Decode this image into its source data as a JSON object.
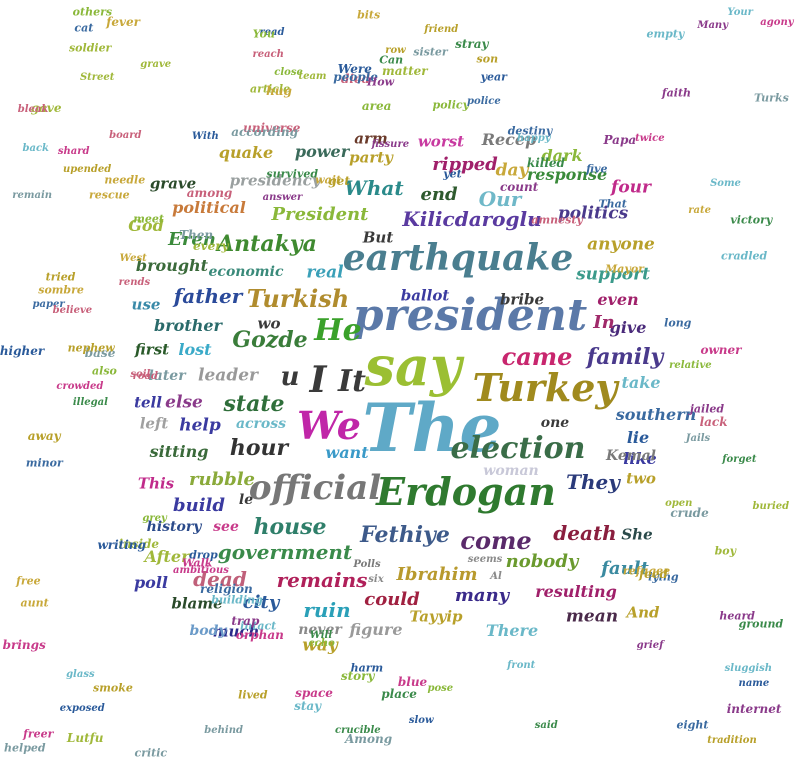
{
  "words": [
    {
      "t": "The",
      "c": "#5fa9c7"
    },
    {
      "t": "say",
      "c": "#9bbf33"
    },
    {
      "t": "president",
      "c": "#5b79a8"
    },
    {
      "t": "earthquake",
      "c": "#4a7e8f"
    },
    {
      "t": "Erdogan",
      "c": "#2f7a2f"
    },
    {
      "t": "official",
      "c": "#777777"
    },
    {
      "t": "Turkey",
      "c": "#a08a1e"
    },
    {
      "t": "election",
      "c": "#3a6d48"
    },
    {
      "t": "We",
      "c": "#c026a8"
    },
    {
      "t": "I",
      "c": "#3a3a3a"
    },
    {
      "t": "It",
      "c": "#3a3a3a"
    },
    {
      "t": "He",
      "c": "#3aa12a"
    },
    {
      "t": "came",
      "c": "#c8266e"
    },
    {
      "t": "family",
      "c": "#4a3a8c"
    },
    {
      "t": "hour",
      "c": "#333333"
    },
    {
      "t": "state",
      "c": "#2f6e3a"
    },
    {
      "t": "Antakya",
      "c": "#3f8a30"
    },
    {
      "t": "Turkish",
      "c": "#b08c2e"
    },
    {
      "t": "Gozde",
      "c": "#3a7d3a"
    },
    {
      "t": "Fethiye",
      "c": "#3d5a8a"
    },
    {
      "t": "come",
      "c": "#5a2a6a"
    },
    {
      "t": "house",
      "c": "#2f7f6a"
    },
    {
      "t": "government",
      "c": "#3a8a4a"
    },
    {
      "t": "death",
      "c": "#8a1e3e"
    },
    {
      "t": "remains",
      "c": "#b0205a"
    },
    {
      "t": "Ibrahim",
      "c": "#b89a2e"
    },
    {
      "t": "nobody",
      "c": "#6a9a2e"
    },
    {
      "t": "They",
      "c": "#2a3a7a"
    },
    {
      "t": "Kilicdaroglu",
      "c": "#5a3aa0"
    },
    {
      "t": "President",
      "c": "#8ab83a"
    },
    {
      "t": "What",
      "c": "#2a8a8a"
    },
    {
      "t": "father",
      "c": "#2a4a9a"
    },
    {
      "t": "Our",
      "c": "#6fb8c8"
    },
    {
      "t": "end",
      "c": "#2e5a2e"
    },
    {
      "t": "ripped",
      "c": "#a0206a"
    },
    {
      "t": "politics",
      "c": "#4a3a8c"
    },
    {
      "t": "response",
      "c": "#3a8a3a"
    },
    {
      "t": "dead",
      "c": "#c0607a"
    },
    {
      "t": "build",
      "c": "#3a3aa0"
    },
    {
      "t": "ruin",
      "c": "#2aa0b8"
    },
    {
      "t": "could",
      "c": "#a02040"
    },
    {
      "t": "many",
      "c": "#3a2a8a"
    },
    {
      "t": "city",
      "c": "#2a5a9a"
    },
    {
      "t": "resulting",
      "c": "#a0206a"
    },
    {
      "t": "fault",
      "c": "#3a8aa0"
    },
    {
      "t": "rubble",
      "c": "#8aaa3a"
    },
    {
      "t": "leader",
      "c": "#999999"
    },
    {
      "t": "help",
      "c": "#3a3aa0"
    },
    {
      "t": "sitting",
      "c": "#3a6a3a"
    },
    {
      "t": "want",
      "c": "#3a9ac8"
    },
    {
      "t": "brother",
      "c": "#2a6a6a"
    },
    {
      "t": "first",
      "c": "#2a5a2a"
    },
    {
      "t": "lost",
      "c": "#3aaac8"
    },
    {
      "t": "use",
      "c": "#3a8aa8"
    },
    {
      "t": "brought",
      "c": "#3a6a3a"
    },
    {
      "t": "economic",
      "c": "#3a8a7a"
    },
    {
      "t": "real",
      "c": "#3aa0b8"
    },
    {
      "t": "ballot",
      "c": "#3a3aa0"
    },
    {
      "t": "bribe",
      "c": "#3a3a3a"
    },
    {
      "t": "even",
      "c": "#a0206a"
    },
    {
      "t": "give",
      "c": "#4a2a7a"
    },
    {
      "t": "In",
      "c": "#a02a6a"
    },
    {
      "t": "support",
      "c": "#3a9a8a"
    },
    {
      "t": "anyone",
      "c": "#b8a02a"
    },
    {
      "t": "four",
      "c": "#c02a8a"
    },
    {
      "t": "day",
      "c": "#c8a83a"
    },
    {
      "t": "dark",
      "c": "#8ab83a"
    },
    {
      "t": "party",
      "c": "#b8a02a"
    },
    {
      "t": "Recep",
      "c": "#7a7a7a"
    },
    {
      "t": "worst",
      "c": "#c83aa0"
    },
    {
      "t": "quake",
      "c": "#b8a02a"
    },
    {
      "t": "power",
      "c": "#3a6a5a"
    },
    {
      "t": "arm",
      "c": "#6a3a2a"
    },
    {
      "t": "grave",
      "c": "#2a4a2a"
    },
    {
      "t": "presidency",
      "c": "#9aa0a0"
    },
    {
      "t": "political",
      "c": "#c87a3a"
    },
    {
      "t": "Eren",
      "c": "#3a8a3a"
    },
    {
      "t": "God",
      "c": "#a0b83a"
    },
    {
      "t": "But",
      "c": "#3a3a3a"
    },
    {
      "t": "tell",
      "c": "#3a3aa0"
    },
    {
      "t": "left",
      "c": "#a0a0a0"
    },
    {
      "t": "else",
      "c": "#8a3a8a"
    },
    {
      "t": "later",
      "c": "#7a9aa0"
    },
    {
      "t": "across",
      "c": "#6ab8c8"
    },
    {
      "t": "history",
      "c": "#2a4a8a"
    },
    {
      "t": "see",
      "c": "#c83a8a"
    },
    {
      "t": "After",
      "c": "#a0b83a"
    },
    {
      "t": "poll",
      "c": "#3a3aa0"
    },
    {
      "t": "blame",
      "c": "#2a4a2a"
    },
    {
      "t": "much",
      "c": "#2a2a8a"
    },
    {
      "t": "body",
      "c": "#6a9ac8"
    },
    {
      "t": "never",
      "c": "#8a8a8a"
    },
    {
      "t": "figure",
      "c": "#9a9a9a"
    },
    {
      "t": "way",
      "c": "#b8a02a"
    },
    {
      "t": "Tayyip",
      "c": "#b8a02a"
    },
    {
      "t": "There",
      "c": "#6ab8c8"
    },
    {
      "t": "mean",
      "c": "#4a2a4a"
    },
    {
      "t": "And",
      "c": "#b8a02a"
    },
    {
      "t": "take",
      "c": "#6ab8c8"
    },
    {
      "t": "southern",
      "c": "#3a6aa0"
    },
    {
      "t": "lie",
      "c": "#2a5a9a"
    },
    {
      "t": "like",
      "c": "#3a3aa0"
    },
    {
      "t": "two",
      "c": "#b8a02a"
    },
    {
      "t": "She",
      "c": "#2a4a4a"
    },
    {
      "t": "This",
      "c": "#c02a8a"
    },
    {
      "t": "woman",
      "c": "#c8c8d8"
    },
    {
      "t": "one",
      "c": "#3a3a3a"
    },
    {
      "t": "u",
      "c": "#3a3a3a"
    },
    {
      "t": "wo",
      "c": "#3a3a3a"
    },
    {
      "t": "Kemal",
      "c": "#7a7a7a"
    },
    {
      "t": "le",
      "c": "#3a3a3a"
    },
    {
      "t": "Polls",
      "c": "#7a7a7a"
    },
    {
      "t": "six",
      "c": "#8a8a8a"
    },
    {
      "t": "seems",
      "c": "#8a8a8a"
    },
    {
      "t": "Al",
      "c": "#8a8a8a"
    }
  ]
}
